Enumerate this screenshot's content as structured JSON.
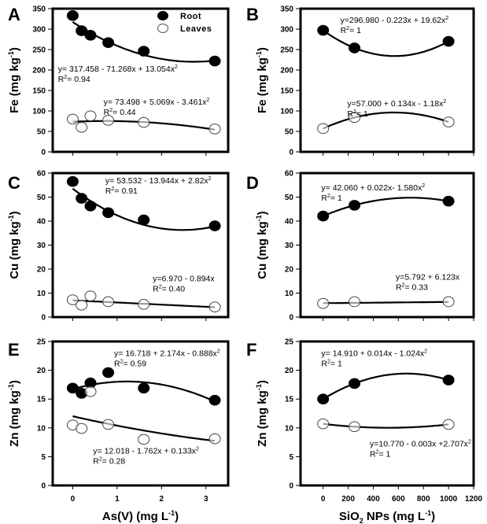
{
  "chart_data": [
    {
      "panel": "A",
      "type": "scatter",
      "ylabel": "Fe (mg kg",
      "ylabel_sup": "-1",
      "ylabel_close": ")",
      "xlabel": "",
      "xlim": [
        -0.45,
        3.5
      ],
      "ylim": [
        0,
        350
      ],
      "xticks": [
        0,
        1,
        2,
        3
      ],
      "xtick_labels_shown": false,
      "yticks": [
        0,
        50,
        100,
        150,
        200,
        250,
        300,
        350
      ],
      "legend": {
        "position": "top-right",
        "entries": [
          {
            "label": "Root",
            "marker": "filled"
          },
          {
            "label": "Leaves",
            "marker": "open"
          }
        ]
      },
      "series": [
        {
          "name": "Root",
          "marker": "filled",
          "x": [
            0,
            0.2,
            0.4,
            0.8,
            1.6,
            3.2
          ],
          "y": [
            333,
            296,
            285,
            267,
            246,
            222
          ],
          "fit": {
            "a": 317.458,
            "b": -71.268,
            "c": 13.054,
            "xrange": [
              0,
              3.2
            ]
          },
          "equation": "y= 317.458 - 71.268x + 13.054x",
          "eq_sup": "2",
          "r2": "R",
          "r2_sup": "2",
          "r2_val": "= 0.94"
        },
        {
          "name": "Leaves",
          "marker": "open",
          "x": [
            0,
            0.2,
            0.4,
            0.8,
            1.6,
            3.2
          ],
          "y": [
            80,
            60,
            88,
            77,
            72,
            56
          ],
          "fit": {
            "a": 73.498,
            "b": 5.069,
            "c": -3.461,
            "xrange": [
              0,
              3.2
            ]
          },
          "equation": "y= 73.498 + 5.069x - 3.461x",
          "eq_sup": "2",
          "r2": "R",
          "r2_sup": "2",
          "r2_val": "= 0.44"
        }
      ]
    },
    {
      "panel": "B",
      "type": "scatter",
      "ylabel": "Fe (mg kg",
      "ylabel_sup": "-1",
      "ylabel_close": ")",
      "xlabel": "",
      "xlim": [
        -180,
        1200
      ],
      "ylim": [
        0,
        350
      ],
      "xticks": [
        0,
        200,
        400,
        600,
        800,
        1000,
        1200
      ],
      "xtick_labels_shown": false,
      "yticks": [
        0,
        50,
        100,
        150,
        200,
        250,
        300,
        350
      ],
      "series": [
        {
          "name": "Root",
          "marker": "filled",
          "x": [
            0,
            250,
            1000
          ],
          "y": [
            297,
            254,
            270
          ],
          "fit": {
            "points": [
              [
                0,
                297
              ],
              [
                250,
                254
              ],
              [
                1000,
                270
              ]
            ],
            "xrange": [
              0,
              1000
            ]
          },
          "equation": "y=296.980 - 0.223x + 19.62x",
          "eq_sup": "2",
          "r2": "R",
          "r2_sup": "2",
          "r2_val": "= 1"
        },
        {
          "name": "Leaves",
          "marker": "open",
          "x": [
            0,
            250,
            1000
          ],
          "y": [
            57,
            84,
            73
          ],
          "fit": {
            "points": [
              [
                0,
                57
              ],
              [
                250,
                84
              ],
              [
                1000,
                73
              ]
            ],
            "xrange": [
              0,
              1000
            ]
          },
          "equation": "y=57.000 + 0.134x - 1.18x",
          "eq_sup": "2",
          "r2": "R",
          "r2_sup": "2",
          "r2_val": "= 1"
        }
      ]
    },
    {
      "panel": "C",
      "type": "scatter",
      "ylabel": "Cu (mg kg",
      "ylabel_sup": "-1",
      "ylabel_close": ")",
      "xlabel": "",
      "xlim": [
        -0.45,
        3.5
      ],
      "ylim": [
        0,
        60
      ],
      "xticks": [
        0,
        1,
        2,
        3
      ],
      "xtick_labels_shown": false,
      "yticks": [
        0,
        10,
        20,
        30,
        40,
        50,
        60
      ],
      "series": [
        {
          "name": "Root",
          "marker": "filled",
          "x": [
            0,
            0.2,
            0.4,
            0.8,
            1.6,
            3.2
          ],
          "y": [
            56.5,
            49.5,
            46.3,
            43.5,
            40.5,
            38.0
          ],
          "fit": {
            "a": 53.532,
            "b": -13.944,
            "c": 2.82,
            "xrange": [
              0,
              3.2
            ]
          },
          "equation": "y= 53.532 - 13.944x + 2.82x",
          "eq_sup": "2",
          "r2": "R",
          "r2_sup": "2",
          "r2_val": "= 0.91"
        },
        {
          "name": "Leaves",
          "marker": "open",
          "x": [
            0,
            0.2,
            0.4,
            0.8,
            1.6,
            3.2
          ],
          "y": [
            7.2,
            5.0,
            8.8,
            6.4,
            5.3,
            4.2
          ],
          "fit": {
            "a": 6.97,
            "b": -0.894,
            "c": 0,
            "xrange": [
              0,
              3.2
            ]
          },
          "equation": "y=6.970 - 0.894x",
          "eq_sup": "",
          "r2": "R",
          "r2_sup": "2",
          "r2_val": "= 0.40"
        }
      ]
    },
    {
      "panel": "D",
      "type": "scatter",
      "ylabel": "Cu (mg kg",
      "ylabel_sup": "-1",
      "ylabel_close": ")",
      "xlabel": "",
      "xlim": [
        -180,
        1200
      ],
      "ylim": [
        0,
        60
      ],
      "xticks": [
        0,
        200,
        400,
        600,
        800,
        1000,
        1200
      ],
      "xtick_labels_shown": false,
      "yticks": [
        0,
        10,
        20,
        30,
        40,
        50,
        60
      ],
      "series": [
        {
          "name": "Root",
          "marker": "filled",
          "x": [
            0,
            250,
            1000
          ],
          "y": [
            42.1,
            46.6,
            48.3
          ],
          "fit": {
            "points": [
              [
                0,
                42.1
              ],
              [
                250,
                46.6
              ],
              [
                1000,
                48.3
              ]
            ],
            "xrange": [
              0,
              1000
            ]
          },
          "equation": "y= 42.060 + 0.022x- 1.580x",
          "eq_sup": "2",
          "r2": "R",
          "r2_sup": "2",
          "r2_val": "= 1"
        },
        {
          "name": "Leaves",
          "marker": "open",
          "x": [
            0,
            250,
            1000
          ],
          "y": [
            5.7,
            6.4,
            6.4
          ],
          "fit": {
            "points": [
              [
                0,
                5.8
              ],
              [
                1000,
                6.3
              ]
            ],
            "linear": true,
            "xrange": [
              0,
              1000
            ]
          },
          "equation": "y=5.792 + 6.123x",
          "eq_sup": "",
          "r2": "R",
          "r2_sup": "2",
          "r2_val": "= 0.33"
        }
      ]
    },
    {
      "panel": "E",
      "type": "scatter",
      "ylabel": "Zn (mg kg",
      "ylabel_sup": "-1",
      "ylabel_close": ")",
      "xlabel": "As(V) (mg L",
      "xlabel_sup": "-1",
      "xlabel_close": ")",
      "xlim": [
        -0.45,
        3.5
      ],
      "ylim": [
        0,
        25
      ],
      "xticks": [
        0,
        1,
        2,
        3
      ],
      "xtick_labels_shown": true,
      "yticks": [
        0,
        5,
        10,
        15,
        20,
        25
      ],
      "series": [
        {
          "name": "Root",
          "marker": "filled",
          "x": [
            0,
            0.2,
            0.4,
            0.8,
            1.6,
            3.2
          ],
          "y": [
            16.9,
            16.0,
            17.8,
            19.6,
            16.9,
            14.8
          ],
          "fit": {
            "a": 16.718,
            "b": 2.174,
            "c": -0.888,
            "xrange": [
              0,
              3.2
            ]
          },
          "equation": "y= 16.718 + 2.174x - 0.888x",
          "eq_sup": "2",
          "r2": "R",
          "r2_sup": "2",
          "r2_val": "= 0.59"
        },
        {
          "name": "Leaves",
          "marker": "open",
          "x": [
            0,
            0.2,
            0.4,
            0.8,
            1.6,
            3.2
          ],
          "y": [
            10.5,
            9.9,
            16.3,
            10.6,
            8.0,
            8.1
          ],
          "fit": {
            "a": 12.018,
            "b": -1.762,
            "c": 0.133,
            "xrange": [
              0,
              3.2
            ]
          },
          "equation": "y= 12.018 - 1.762x + 0.133x",
          "eq_sup": "2",
          "r2": "R",
          "r2_sup": "2",
          "r2_val": "= 0.28"
        }
      ]
    },
    {
      "panel": "F",
      "type": "scatter",
      "ylabel": "Zn (mg kg",
      "ylabel_sup": "-1",
      "ylabel_close": ")",
      "xlabel": "SiO",
      "xlabel_sub": "2",
      "xlabel_rest": " NPs (mg L",
      "xlabel_sup": "-1",
      "xlabel_close": ")",
      "xlim": [
        -180,
        1200
      ],
      "ylim": [
        0,
        25
      ],
      "xticks": [
        0,
        200,
        400,
        600,
        800,
        1000,
        1200
      ],
      "xtick_labels_shown": true,
      "yticks": [
        0,
        5,
        10,
        15,
        20,
        25
      ],
      "series": [
        {
          "name": "Root",
          "marker": "filled",
          "x": [
            0,
            250,
            1000
          ],
          "y": [
            15.0,
            17.7,
            18.3
          ],
          "fit": {
            "points": [
              [
                0,
                15.0
              ],
              [
                250,
                17.7
              ],
              [
                1000,
                18.3
              ]
            ],
            "xrange": [
              0,
              1000
            ]
          },
          "equation": "y= 14.910 + 0.014x - 1.024x",
          "eq_sup": "2",
          "r2": "R",
          "r2_sup": "2",
          "r2_val": "= 1"
        },
        {
          "name": "Leaves",
          "marker": "open",
          "x": [
            0,
            250,
            1000
          ],
          "y": [
            10.7,
            10.2,
            10.6
          ],
          "fit": {
            "points": [
              [
                0,
                10.7
              ],
              [
                250,
                10.2
              ],
              [
                1000,
                10.6
              ]
            ],
            "xrange": [
              0,
              1000
            ]
          },
          "equation": "y=10.770 - 0.003x +2.707x",
          "eq_sup": "2",
          "r2": "R",
          "r2_sup": "2",
          "r2_val": "= 1"
        }
      ]
    }
  ]
}
